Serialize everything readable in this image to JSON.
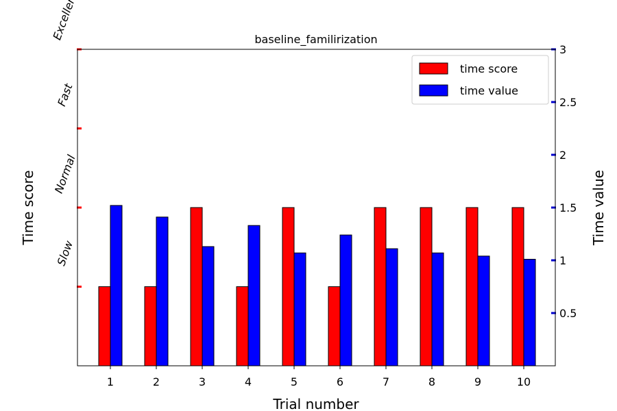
{
  "chart_data": {
    "type": "bar",
    "title": "baseline_familirization",
    "xlabel": "Trial number",
    "ylabel_left": "Time score",
    "ylabel_right": "Time value",
    "categories": [
      "1",
      "2",
      "3",
      "4",
      "5",
      "6",
      "7",
      "8",
      "9",
      "10"
    ],
    "score_levels": [
      "Slow",
      "Normal",
      "Fast",
      "Excellent"
    ],
    "left_ylim": [
      0,
      4
    ],
    "right_ylim": [
      0,
      3
    ],
    "right_ticks": [
      "0.5",
      "1",
      "1.5",
      "2",
      "2.5",
      "3"
    ],
    "series": [
      {
        "name": "time score",
        "axis": "left",
        "color": "#ff0000",
        "values": [
          1,
          1,
          2,
          1,
          2,
          1,
          2,
          2,
          2,
          2
        ]
      },
      {
        "name": "time value",
        "axis": "right",
        "color": "#0000ff",
        "values": [
          1.52,
          1.41,
          1.13,
          1.33,
          1.07,
          1.24,
          1.11,
          1.07,
          1.04,
          1.01
        ]
      }
    ],
    "left_tick_color": "#ff0000",
    "right_tick_color": "#0000cc",
    "legend_position": "top-right",
    "grid": false
  }
}
